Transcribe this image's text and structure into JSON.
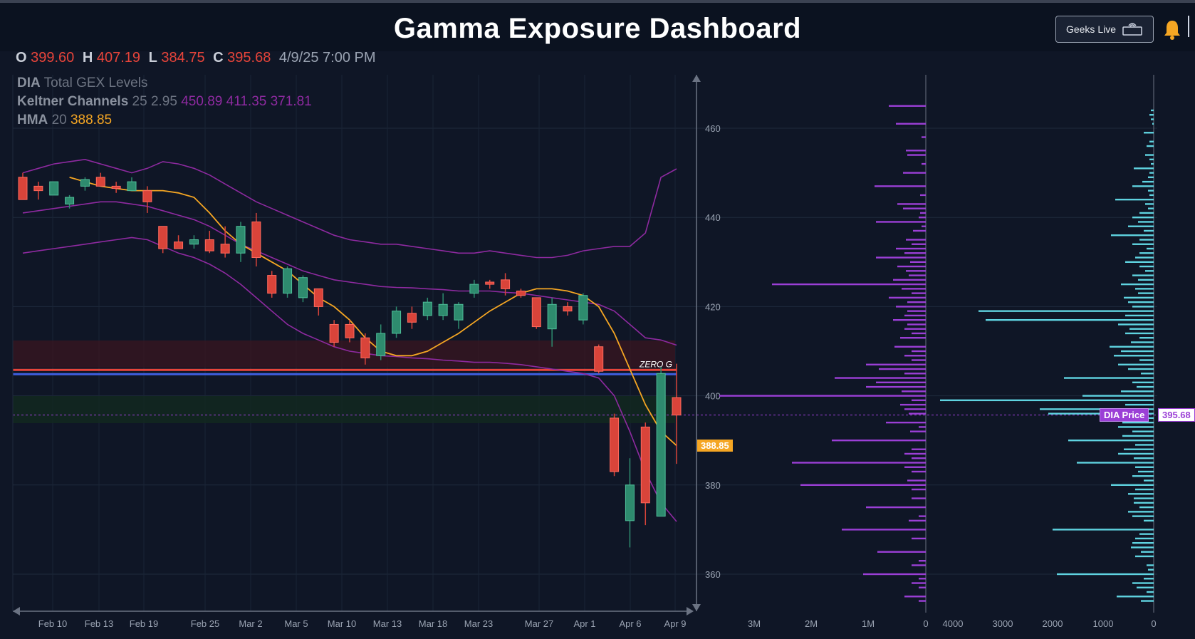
{
  "header": {
    "title": "Gamma Exposure Dashboard",
    "geeks_live_label": "Geeks Live",
    "bell_icon": "bell-icon"
  },
  "ohlc": {
    "o_label": "O",
    "o_value": "399.60",
    "h_label": "H",
    "h_value": "407.19",
    "l_label": "L",
    "l_value": "384.75",
    "c_label": "C",
    "c_value": "395.68",
    "datetime": "4/9/25 7:00 PM"
  },
  "legend": {
    "gex_name": "DIA",
    "gex_rest": "Total GEX Levels",
    "kc_name": "Keltner Channels",
    "kc_params": "25 2.95",
    "kc_values": "450.89 411.35 371.81",
    "hma_name": "HMA",
    "hma_params": "20",
    "hma_value": "388.85"
  },
  "labels": {
    "zero_g": "ZERO G",
    "hma_tag": "388.85",
    "dia_price_label": "DIA Price",
    "dia_price_value": "395.68"
  },
  "colors": {
    "up": "#2e8b6e",
    "down": "#d9443a",
    "hma": "#f5a623",
    "keltner": "#8e2aa0",
    "gex_bar": "#9b3fd6",
    "gex_bar2": "#5fd3e0"
  },
  "chart_data": {
    "type": "candlestick",
    "x_ticks": [
      "Feb 10",
      "Feb 13",
      "Feb 19",
      "Feb 25",
      "Mar 2",
      "Mar 5",
      "Mar 10",
      "Mar 13",
      "Mar 18",
      "Mar 23",
      "Mar 27",
      "Apr 1",
      "Apr 6",
      "Apr 9"
    ],
    "y_ticks": [
      360,
      380,
      400,
      420,
      440,
      460
    ],
    "ylim": [
      352,
      472
    ],
    "candles": [
      {
        "o": 449,
        "h": 450,
        "l": 444,
        "c": 444
      },
      {
        "o": 447,
        "h": 448,
        "l": 444,
        "c": 446
      },
      {
        "o": 445,
        "h": 448,
        "l": 445,
        "c": 448
      },
      {
        "o": 443,
        "h": 445,
        "l": 442,
        "c": 444.5
      },
      {
        "o": 447,
        "h": 449,
        "l": 446,
        "c": 448.5
      },
      {
        "o": 449,
        "h": 450,
        "l": 447,
        "c": 447
      },
      {
        "o": 447,
        "h": 448,
        "l": 445.5,
        "c": 446.5
      },
      {
        "o": 446,
        "h": 449,
        "l": 446,
        "c": 448
      },
      {
        "o": 446,
        "h": 447,
        "l": 441,
        "c": 443.5
      },
      {
        "o": 438,
        "h": 438,
        "l": 432,
        "c": 433
      },
      {
        "o": 434.5,
        "h": 436,
        "l": 433,
        "c": 433
      },
      {
        "o": 434,
        "h": 436,
        "l": 433,
        "c": 435
      },
      {
        "o": 435,
        "h": 437,
        "l": 432,
        "c": 432.5
      },
      {
        "o": 434,
        "h": 438,
        "l": 431,
        "c": 432
      },
      {
        "o": 432,
        "h": 439,
        "l": 430,
        "c": 438
      },
      {
        "o": 439,
        "h": 441,
        "l": 429,
        "c": 431
      },
      {
        "o": 427,
        "h": 428,
        "l": 422,
        "c": 423
      },
      {
        "o": 423,
        "h": 429,
        "l": 422,
        "c": 428.5
      },
      {
        "o": 422,
        "h": 427,
        "l": 421,
        "c": 426.5
      },
      {
        "o": 424,
        "h": 424,
        "l": 418,
        "c": 420
      },
      {
        "o": 416,
        "h": 417,
        "l": 411,
        "c": 412
      },
      {
        "o": 416,
        "h": 417,
        "l": 412,
        "c": 413
      },
      {
        "o": 413,
        "h": 414,
        "l": 407,
        "c": 408.5
      },
      {
        "o": 409,
        "h": 416,
        "l": 408,
        "c": 414
      },
      {
        "o": 414,
        "h": 420,
        "l": 413,
        "c": 419
      },
      {
        "o": 418.5,
        "h": 420,
        "l": 415,
        "c": 416.5
      },
      {
        "o": 418,
        "h": 422,
        "l": 417,
        "c": 421
      },
      {
        "o": 418,
        "h": 423,
        "l": 417,
        "c": 420.5
      },
      {
        "o": 417,
        "h": 421,
        "l": 415,
        "c": 420.5
      },
      {
        "o": 423,
        "h": 426,
        "l": 422,
        "c": 425
      },
      {
        "o": 425.5,
        "h": 426,
        "l": 424,
        "c": 425
      },
      {
        "o": 426,
        "h": 427.5,
        "l": 422.5,
        "c": 424
      },
      {
        "o": 423.5,
        "h": 424,
        "l": 422,
        "c": 422.5
      },
      {
        "o": 422,
        "h": 422,
        "l": 415,
        "c": 415.5
      },
      {
        "o": 415,
        "h": 422,
        "l": 411,
        "c": 420.5
      },
      {
        "o": 420,
        "h": 421,
        "l": 418,
        "c": 419
      },
      {
        "o": 417,
        "h": 423,
        "l": 416,
        "c": 422.5
      },
      {
        "o": 411,
        "h": 411.5,
        "l": 405,
        "c": 405.5
      },
      {
        "o": 395,
        "h": 396,
        "l": 382,
        "c": 383
      },
      {
        "o": 372,
        "h": 386,
        "l": 366,
        "c": 380
      },
      {
        "o": 393,
        "h": 394,
        "l": 371,
        "c": 376
      },
      {
        "o": 373,
        "h": 406.5,
        "l": 373,
        "c": 405
      },
      {
        "o": 399.6,
        "h": 407.19,
        "l": 384.75,
        "c": 395.68
      }
    ],
    "hma_last": 388.85,
    "keltner_last": {
      "upper": 450.89,
      "middle": 411.35,
      "lower": 371.81
    },
    "zero_gamma_level": 405.8,
    "gex_panel_1": {
      "x_ticks": [
        "3M",
        "2M",
        "1M",
        "0"
      ],
      "xlim": [
        0,
        4000000
      ]
    },
    "gex_panel_2": {
      "x_ticks": [
        "4000",
        "3000",
        "2000",
        "1000",
        "0"
      ],
      "xlim": [
        0,
        4500
      ]
    }
  }
}
